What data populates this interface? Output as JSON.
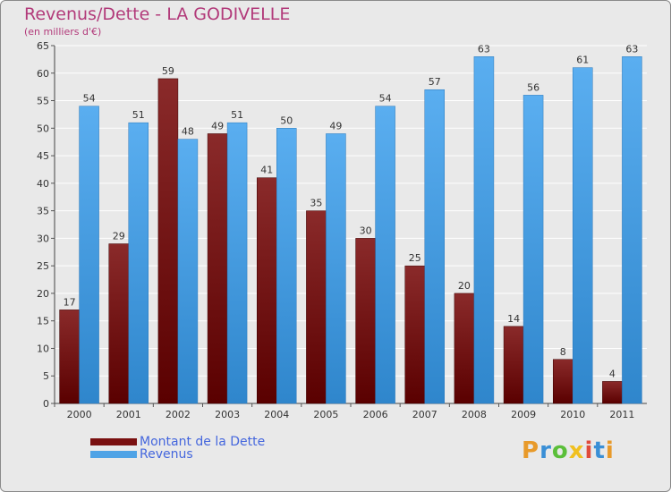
{
  "title": "Revenus/Dette - LA GODIVELLE",
  "subtitle": "(en milliers d'€)",
  "brand": {
    "letters": [
      "P",
      "r",
      "o",
      "x",
      "i",
      "t",
      "i"
    ],
    "colors": [
      "#e89a2a",
      "#3a8fd6",
      "#5bbf3a",
      "#f0c020",
      "#e04a3a",
      "#3a8fd6",
      "#e89a2a"
    ]
  },
  "legend": [
    {
      "label": "Montant de la Dette",
      "color": "#7a1010"
    },
    {
      "label": "Revenus",
      "color": "#4fa3e6"
    }
  ],
  "chart_data": {
    "type": "bar",
    "categories": [
      "2000",
      "2001",
      "2002",
      "2003",
      "2004",
      "2005",
      "2006",
      "2007",
      "2008",
      "2009",
      "2010",
      "2011"
    ],
    "series": [
      {
        "name": "Montant de la Dette",
        "color": "#7a1010",
        "values": [
          17,
          29,
          59,
          49,
          41,
          35,
          30,
          25,
          20,
          14,
          8,
          4
        ]
      },
      {
        "name": "Revenus",
        "color": "#4fa3e6",
        "values": [
          54,
          51,
          48,
          51,
          50,
          49,
          54,
          57,
          63,
          56,
          61,
          63
        ]
      }
    ],
    "ylim": [
      0,
      65
    ],
    "yticks": [
      0,
      5,
      10,
      15,
      20,
      25,
      30,
      35,
      40,
      45,
      50,
      55,
      60,
      65
    ],
    "grid": true
  }
}
